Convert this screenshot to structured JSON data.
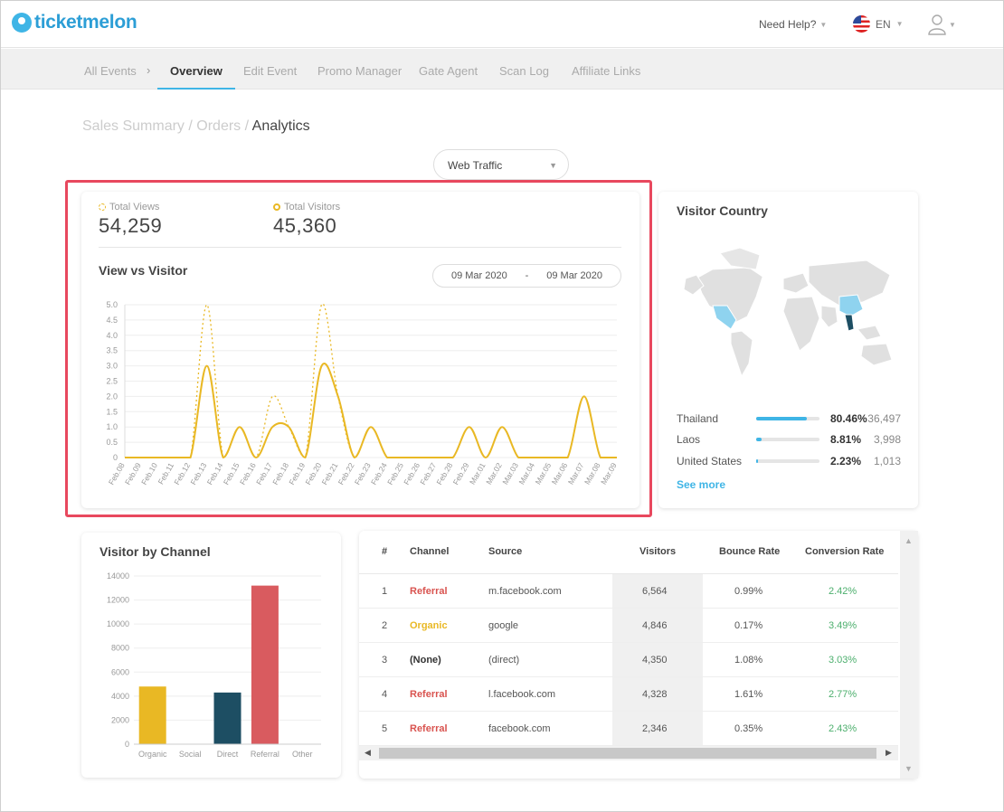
{
  "app": {
    "logo_text": "ticketmelon"
  },
  "header": {
    "help": "Need Help?",
    "lang": "EN"
  },
  "tabs": [
    {
      "label": "All Events"
    },
    {
      "label": "Overview"
    },
    {
      "label": "Edit Event"
    },
    {
      "label": "Promo Manager"
    },
    {
      "label": "Gate Agent"
    },
    {
      "label": "Scan Log"
    },
    {
      "label": "Affiliate Links"
    }
  ],
  "breadcrumb": {
    "sales": "Sales Summary",
    "sep": "/",
    "orders": "Orders",
    "current": "Analytics"
  },
  "filter": {
    "selected": "Web Traffic"
  },
  "stats": {
    "views_label": "Total Views",
    "views_value": "54,259",
    "visitors_label": "Total Visitors",
    "visitors_value": "45,360"
  },
  "view_chart": {
    "title": "View vs Visitor",
    "date_from": "09 Mar 2020",
    "date_sep": "-",
    "date_to": "09 Mar 2020"
  },
  "colors": {
    "accent": "#3fb5e6",
    "gold": "#e9b824",
    "teal": "#1d4e63",
    "red": "#d95b5f",
    "highlight": "#e8485e",
    "green": "#4caf6d"
  },
  "country": {
    "title": "Visitor Country",
    "rows": [
      {
        "name": "Thailand",
        "pct": "80.46%",
        "count": "36,497",
        "fill": 80.46
      },
      {
        "name": "Laos",
        "pct": "8.81%",
        "count": "3,998",
        "fill": 8.81
      },
      {
        "name": "United States",
        "pct": "2.23%",
        "count": "1,013",
        "fill": 2.23
      }
    ],
    "see_more": "See more"
  },
  "channel": {
    "title": "Visitor by Channel"
  },
  "table": {
    "headers": [
      "#",
      "Channel",
      "Source",
      "Visitors",
      "Bounce Rate",
      "Conversion Rate"
    ],
    "rows": [
      {
        "n": "1",
        "channel": "Referral",
        "source": "m.facebook.com",
        "visitors": "6,564",
        "bounce": "0.99%",
        "conv": "2.42%"
      },
      {
        "n": "2",
        "channel": "Organic",
        "source": "google",
        "visitors": "4,846",
        "bounce": "0.17%",
        "conv": "3.49%"
      },
      {
        "n": "3",
        "channel": "(None)",
        "source": "(direct)",
        "visitors": "4,350",
        "bounce": "1.08%",
        "conv": "3.03%"
      },
      {
        "n": "4",
        "channel": "Referral",
        "source": "l.facebook.com",
        "visitors": "4,328",
        "bounce": "1.61%",
        "conv": "2.77%"
      },
      {
        "n": "5",
        "channel": "Referral",
        "source": "facebook.com",
        "visitors": "2,346",
        "bounce": "0.35%",
        "conv": "2.43%"
      }
    ]
  },
  "chart_data": [
    {
      "type": "line",
      "x": [
        "Feb.08",
        "Feb.09",
        "Feb.10",
        "Feb.11",
        "Feb.12",
        "Feb.13",
        "Feb.14",
        "Feb.15",
        "Feb.16",
        "Feb.17",
        "Feb.18",
        "Feb.19",
        "Feb.20",
        "Feb.21",
        "Feb.22",
        "Feb.23",
        "Feb.24",
        "Feb.25",
        "Feb.26",
        "Feb.27",
        "Feb.28",
        "Feb.29",
        "Mar.01",
        "Mar.02",
        "Mar.03",
        "Mar.04",
        "Mar.05",
        "Mar.06",
        "Mar.07",
        "Mar.08",
        "Mar.09"
      ],
      "series": [
        {
          "values": [
            0,
            0,
            0,
            0,
            0,
            5,
            0,
            1,
            0,
            2,
            1,
            0,
            5,
            2,
            0,
            1,
            0,
            0,
            0,
            0,
            0,
            1,
            0,
            1,
            0,
            0,
            0,
            0,
            2,
            0,
            0
          ],
          "style": "dashed"
        },
        {
          "values": [
            0,
            0,
            0,
            0,
            0,
            3,
            0,
            1,
            0,
            1,
            1,
            0,
            3,
            2,
            0,
            1,
            0,
            0,
            0,
            0,
            0,
            1,
            0,
            1,
            0,
            0,
            0,
            0,
            2,
            0,
            0
          ],
          "style": "solid"
        }
      ],
      "yticks": [
        "0",
        "0.5",
        "1.0",
        "1.5",
        "2.0",
        "2.5",
        "3.0",
        "3.5",
        "4.0",
        "4.5",
        "5.0"
      ],
      "ylim": [
        0,
        5
      ]
    },
    {
      "type": "bar",
      "categories": [
        "Organic",
        "Social",
        "Direct",
        "Referral",
        "Other"
      ],
      "values": [
        4800,
        0,
        4300,
        13200,
        0
      ],
      "yticks": [
        "0",
        "2000",
        "4000",
        "6000",
        "8000",
        "10000",
        "12000",
        "14000"
      ],
      "ylim": [
        0,
        14000
      ]
    }
  ]
}
